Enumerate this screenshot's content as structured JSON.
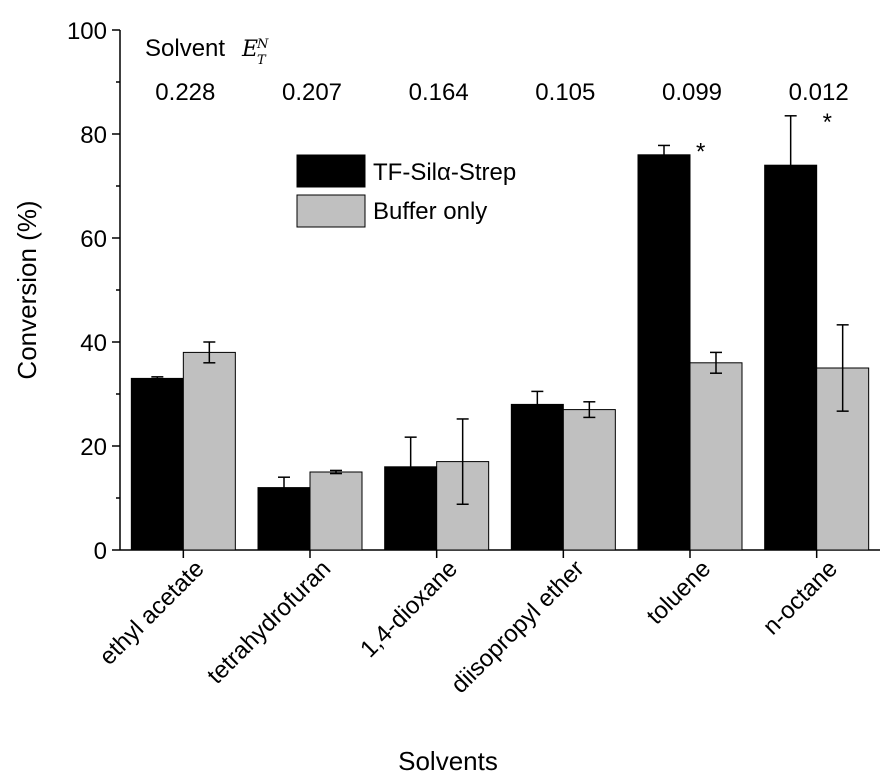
{
  "chart_data": {
    "type": "bar",
    "title": "",
    "xlabel": "Solvents",
    "ylabel": "Conversion (%)",
    "ylim": [
      0,
      100
    ],
    "yticks": [
      0,
      20,
      40,
      60,
      80,
      100
    ],
    "grid": false,
    "legend_position": "top-center",
    "categories": [
      "ethyl acetate",
      "tetrahydrofuran",
      "1,4-dioxane",
      "diisopropyl ether",
      "toluene",
      "n-octane"
    ],
    "series": [
      {
        "name": "TF-Silα-Strep",
        "color": "#000000",
        "values": [
          33,
          12,
          16,
          28,
          76,
          74
        ],
        "errors": [
          0.3,
          2,
          5.7,
          2.5,
          1.8,
          9.5
        ]
      },
      {
        "name": "Buffer only",
        "color": "#c0c0c0",
        "values": [
          38,
          15,
          17,
          27,
          36,
          35
        ],
        "errors": [
          2,
          0.3,
          8.2,
          1.5,
          2,
          8.3
        ]
      }
    ],
    "significance_marks": [
      "",
      "",
      "",
      "",
      "*",
      "*"
    ],
    "solvent_header": {
      "label": "Solvent",
      "symbol": "E",
      "superscript": "N",
      "subscript": "T"
    },
    "solvent_values": [
      "0.228",
      "0.207",
      "0.164",
      "0.105",
      "0.099",
      "0.012"
    ]
  }
}
